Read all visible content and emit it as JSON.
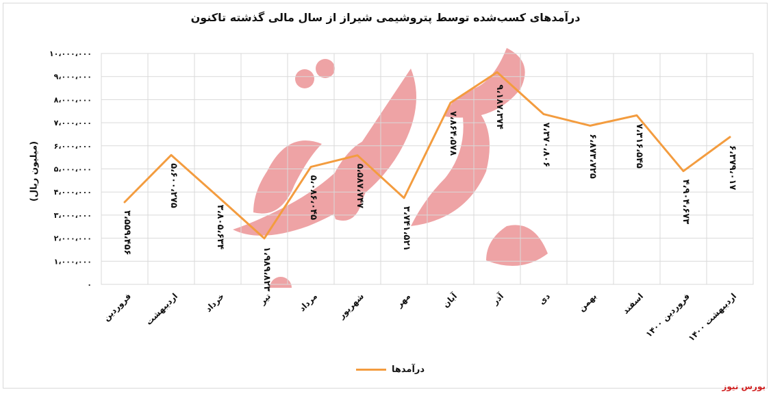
{
  "chart_data": {
    "type": "line",
    "title": "درآمدهای کسب‌شده توسط پتروشیمی شیراز از سال مالی گذشته تاکنون",
    "ylabel": "(میلیون ریال)",
    "xlabel": "",
    "categories": [
      "فروردین",
      "اردیبهشت",
      "خرداد",
      "تیر",
      "مرداد",
      "شهریور",
      "مهر",
      "آبان",
      "آذر",
      "دی",
      "بهمن",
      "اسفند",
      "فروردین ۱۴۰۰",
      "اردیبهشت ۱۴۰۰"
    ],
    "ytick_labels": [
      "۰",
      "۱،۰۰۰،۰۰۰",
      "۲،۰۰۰،۰۰۰",
      "۳،۰۰۰،۰۰۰",
      "۴،۰۰۰،۰۰۰",
      "۵،۰۰۰،۰۰۰",
      "۶،۰۰۰،۰۰۰",
      "۷،۰۰۰،۰۰۰",
      "۸،۰۰۰،۰۰۰",
      "۹،۰۰۰،۰۰۰",
      "۱۰،۰۰۰،۰۰۰"
    ],
    "ylim": [
      0,
      10000000
    ],
    "grid": true,
    "legend_position": "bottom",
    "series": [
      {
        "name": "درآمدها",
        "color": "#f39c3f",
        "values": [
          3559456,
          5600275,
          3805634,
          1989823,
          5086045,
          5587747,
          3741521,
          7864578,
          9187374,
          7370806,
          6873725,
          7316545,
          4904673,
          6379017
        ],
        "data_labels": [
          "۳،۵۵۹،۴۵۶",
          "۵،۶۰۰،۲۷۵",
          "۳،۸۰۵،۶۳۴",
          "۱،۹۸۹،۸۲۳",
          "۵،۰۸۶،۰۴۵",
          "۵،۵۸۷،۷۴۷",
          "۳،۷۴۱،۵۲۱",
          "۷،۸۶۴،۵۷۸",
          "۹،۱۸۷،۳۷۴",
          "۷،۳۷۰،۸۰۶",
          "۶،۸۷۳،۷۲۵",
          "۷،۳۱۶،۵۴۵",
          "۴،۹۰۴،۶۷۳",
          "۶،۳۷۹،۰۱۷"
        ]
      }
    ]
  },
  "source_watermark": "بورس نیوز",
  "logo_text": "بورس نیوز",
  "colors": {
    "line": "#f39c3f",
    "grid": "#d9d9d9",
    "logo": "#d9262b"
  }
}
